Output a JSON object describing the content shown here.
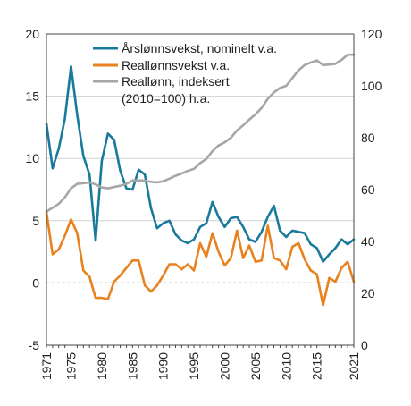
{
  "chart_data": {
    "type": "line",
    "title": "",
    "xlabel": "",
    "ylabel_left": "",
    "ylabel_right": "",
    "x": [
      1971,
      1972,
      1973,
      1974,
      1975,
      1976,
      1977,
      1978,
      1979,
      1980,
      1981,
      1982,
      1983,
      1984,
      1985,
      1986,
      1987,
      1988,
      1989,
      1990,
      1991,
      1992,
      1993,
      1994,
      1995,
      1996,
      1997,
      1998,
      1999,
      2000,
      2001,
      2002,
      2003,
      2004,
      2005,
      2006,
      2007,
      2008,
      2009,
      2010,
      2011,
      2012,
      2013,
      2014,
      2015,
      2016,
      2017,
      2018,
      2019,
      2020,
      2021
    ],
    "xlim": [
      1971,
      2021
    ],
    "x_ticks": [
      1971,
      1975,
      1980,
      1985,
      1990,
      1995,
      2000,
      2005,
      2010,
      2015,
      2021
    ],
    "ylim_left": [
      -5,
      20
    ],
    "y_ticks_left": [
      -5,
      0,
      5,
      10,
      15,
      20
    ],
    "ylim_right": [
      0,
      120
    ],
    "y_ticks_right": [
      0,
      20,
      40,
      60,
      80,
      100,
      120
    ],
    "grid": "horizontal",
    "legend_position": "top-center",
    "series": [
      {
        "name": "Årslønnsvekst, nominelt v.a.",
        "axis": "left",
        "color": "#1a7a9c",
        "values": [
          12.8,
          9.2,
          10.8,
          13.2,
          17.4,
          13.5,
          10.2,
          8.7,
          3.4,
          9.8,
          12.0,
          11.5,
          9.0,
          7.6,
          7.5,
          9.1,
          8.7,
          6.0,
          4.4,
          4.8,
          5.0,
          3.9,
          3.4,
          3.2,
          3.5,
          4.5,
          4.8,
          6.5,
          5.3,
          4.5,
          5.2,
          5.3,
          4.5,
          3.5,
          3.3,
          4.1,
          5.3,
          6.2,
          4.2,
          3.7,
          4.2,
          4.1,
          4.0,
          3.1,
          2.8,
          1.7,
          2.3,
          2.8,
          3.5,
          3.1,
          3.5
        ]
      },
      {
        "name": "Reallønnsvekst v.a.",
        "axis": "left",
        "color": "#e8821e",
        "values": [
          5.7,
          2.3,
          2.7,
          3.8,
          5.1,
          4.0,
          1.0,
          0.5,
          -1.2,
          -1.2,
          -1.3,
          0.1,
          0.6,
          1.2,
          1.8,
          1.8,
          -0.2,
          -0.7,
          -0.2,
          0.6,
          1.5,
          1.5,
          1.1,
          1.5,
          1.0,
          3.2,
          2.1,
          4.0,
          2.5,
          1.4,
          2.0,
          4.2,
          2.0,
          3.0,
          1.7,
          1.8,
          4.6,
          2.0,
          1.8,
          1.1,
          2.9,
          3.2,
          1.9,
          1.0,
          0.7,
          -1.8,
          0.4,
          0.1,
          1.2,
          1.7,
          0.1
        ]
      },
      {
        "name": "Reallønn, indeksert (2010=100) h.a.",
        "axis": "right",
        "color": "#a6a6a6",
        "values": [
          51.5,
          53,
          54.5,
          57,
          60.5,
          62.2,
          62.5,
          62.8,
          62,
          60.8,
          60.5,
          61,
          61.5,
          62.2,
          63.5,
          63.5,
          63.4,
          63,
          62.8,
          63.2,
          64.2,
          65.3,
          66.2,
          67.2,
          68,
          70.2,
          71.8,
          74.8,
          77,
          78.2,
          80,
          82.8,
          84.8,
          87,
          89,
          91.5,
          95,
          97.5,
          99.2,
          100,
          103,
          106,
          108,
          109,
          109.8,
          108,
          108.2,
          108.5,
          110,
          112,
          112
        ]
      }
    ]
  }
}
